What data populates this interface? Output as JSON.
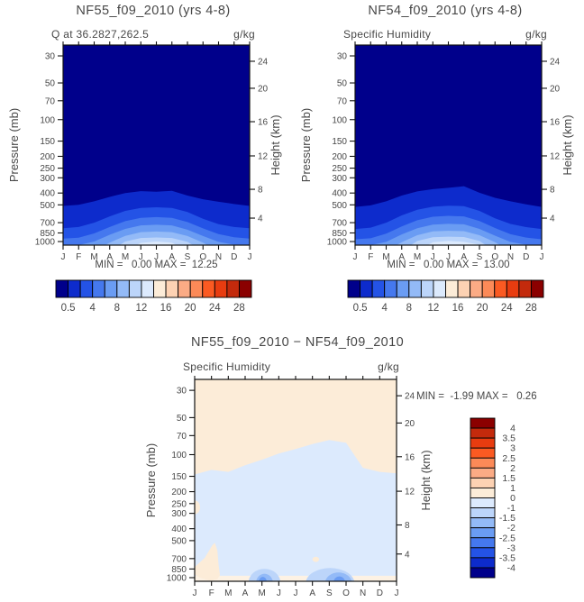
{
  "page": {
    "background": "#ffffff",
    "text_color": "#474747",
    "frame_color": "#111111"
  },
  "palette_low_to_high": [
    "#00008b",
    "#0d2bcc",
    "#2453e6",
    "#4578ee",
    "#6a9cf3",
    "#93baf7",
    "#bcd5fa",
    "#dceafd",
    "#fcecd8",
    "#fdd2b3",
    "#fbab85",
    "#fc8a58",
    "#fb5a22",
    "#e83c10",
    "#c32a0c",
    "#8b0000"
  ],
  "chart_data": [
    {
      "id": "nf55",
      "type": "heatmap",
      "title": "NF55_f09_2010 (yrs 4-8)",
      "subtitle": "Q at 36.2827,262.5",
      "units": "g/kg",
      "stats_line": "MIN =   0.00 MAX =  12.25",
      "x_tick_labels": [
        "J",
        "F",
        "M",
        "A",
        "M",
        "J",
        "J",
        "A",
        "S",
        "O",
        "N",
        "D",
        "J"
      ],
      "pressure_ticks_mb": [
        30,
        50,
        70,
        100,
        150,
        200,
        250,
        300,
        400,
        500,
        700,
        850,
        1000
      ],
      "height_ticks_km": [
        24,
        20,
        16,
        12,
        8,
        4
      ],
      "pressure_axis_label": "Pressure (mb)",
      "height_axis_label": "Height (km)",
      "pressure_range_mb": [
        24.45,
        1070
      ],
      "background_color_index": 0,
      "contour_bands": [
        {
          "level_gkg": 0.5,
          "color_index": 1,
          "top_pressure_by_month_mb": [
            510,
            500,
            468,
            430,
            400,
            386,
            390,
            384,
            420,
            450,
            472,
            492,
            510
          ]
        },
        {
          "level_gkg": 2,
          "color_index": 2,
          "top_pressure_by_month_mb": [
            778,
            760,
            700,
            622,
            560,
            530,
            524,
            530,
            572,
            650,
            720,
            760,
            778
          ]
        },
        {
          "level_gkg": 4,
          "color_index": 3,
          "top_pressure_by_month_mb": [
            945,
            930,
            858,
            760,
            680,
            640,
            630,
            640,
            692,
            780,
            868,
            922,
            945
          ]
        },
        {
          "level_gkg": 6,
          "color_index": 4,
          "top_pressure_by_month_mb": [
            1070,
            1070,
            1000,
            880,
            788,
            738,
            728,
            738,
            800,
            900,
            1005,
            1060,
            1070
          ]
        },
        {
          "level_gkg": 8,
          "color_index": 5,
          "top_pressure_by_month_mb": [
            1200,
            1200,
            1200,
            1020,
            898,
            838,
            828,
            838,
            900,
            1020,
            1200,
            1200,
            1200
          ]
        },
        {
          "level_gkg": 10,
          "color_index": 6,
          "top_pressure_by_month_mb": [
            1200,
            1200,
            1200,
            1200,
            1000,
            935,
            925,
            935,
            1005,
            1200,
            1200,
            1200,
            1200
          ]
        },
        {
          "level_gkg": 12,
          "color_index": 7,
          "top_pressure_by_month_mb": [
            1200,
            1200,
            1200,
            1200,
            1200,
            1025,
            1000,
            1020,
            1200,
            1200,
            1200,
            1200,
            1200
          ]
        }
      ],
      "colorbar_tick_labels": [
        "0.5",
        "4",
        "8",
        "12",
        "16",
        "20",
        "24",
        "28"
      ]
    },
    {
      "id": "nf54",
      "type": "heatmap",
      "title": "NF54_f09_2010 (yrs 4-8)",
      "subtitle": "Specific Humidity",
      "units": "g/kg",
      "stats_line": "MIN =   0.00 MAX =  13.00",
      "x_tick_labels": [
        "J",
        "F",
        "M",
        "A",
        "M",
        "J",
        "J",
        "A",
        "S",
        "O",
        "N",
        "D",
        "J"
      ],
      "pressure_ticks_mb": [
        30,
        50,
        70,
        100,
        150,
        200,
        250,
        300,
        400,
        500,
        700,
        850,
        1000
      ],
      "height_ticks_km": [
        24,
        20,
        16,
        12,
        8,
        4
      ],
      "pressure_axis_label": "Pressure (mb)",
      "height_axis_label": "Height (km)",
      "pressure_range_mb": [
        24.45,
        1070
      ],
      "background_color_index": 0,
      "contour_bands": [
        {
          "level_gkg": 0.5,
          "color_index": 1,
          "top_pressure_by_month_mb": [
            520,
            505,
            468,
            420,
            388,
            372,
            362,
            352,
            398,
            438,
            468,
            495,
            520
          ]
        },
        {
          "level_gkg": 2,
          "color_index": 2,
          "top_pressure_by_month_mb": [
            790,
            770,
            700,
            610,
            548,
            518,
            508,
            512,
            560,
            645,
            718,
            762,
            790
          ]
        },
        {
          "level_gkg": 4,
          "color_index": 3,
          "top_pressure_by_month_mb": [
            958,
            940,
            862,
            752,
            668,
            626,
            616,
            622,
            678,
            775,
            870,
            928,
            958
          ]
        },
        {
          "level_gkg": 6,
          "color_index": 4,
          "top_pressure_by_month_mb": [
            1070,
            1070,
            1005,
            875,
            778,
            726,
            716,
            722,
            788,
            895,
            1008,
            1062,
            1070
          ]
        },
        {
          "level_gkg": 8,
          "color_index": 5,
          "top_pressure_by_month_mb": [
            1200,
            1200,
            1200,
            1012,
            888,
            826,
            816,
            822,
            888,
            1012,
            1200,
            1200,
            1200
          ]
        },
        {
          "level_gkg": 10,
          "color_index": 6,
          "top_pressure_by_month_mb": [
            1200,
            1200,
            1200,
            1200,
            988,
            922,
            912,
            918,
            990,
            1200,
            1200,
            1200,
            1200
          ]
        },
        {
          "level_gkg": 12,
          "color_index": 7,
          "top_pressure_by_month_mb": [
            1200,
            1200,
            1200,
            1200,
            1200,
            1012,
            988,
            1005,
            1062,
            1200,
            1200,
            1200,
            1200
          ]
        }
      ],
      "colorbar_tick_labels": [
        "0.5",
        "4",
        "8",
        "12",
        "16",
        "20",
        "24",
        "28"
      ]
    },
    {
      "id": "difference",
      "type": "heatmap",
      "title": "NF55_f09_2010 − NF54_f09_2010",
      "subtitle": "Specific Humidity",
      "units": "g/kg",
      "stats_line": "MIN =  -1.99 MAX =   0.26",
      "x_tick_labels": [
        "J",
        "F",
        "M",
        "A",
        "M",
        "J",
        "J",
        "A",
        "S",
        "O",
        "N",
        "D",
        "J"
      ],
      "pressure_ticks_mb": [
        30,
        50,
        70,
        100,
        150,
        200,
        250,
        300,
        400,
        500,
        700,
        850,
        1000
      ],
      "height_ticks_km": [
        24,
        20,
        16,
        12,
        8,
        4
      ],
      "pressure_axis_label": "Pressure (mb)",
      "height_axis_label": "Height (km)",
      "pressure_range_mb": [
        24.45,
        1070
      ],
      "background_color_index": 8,
      "negative_region": {
        "band": "-1 to 0",
        "color_index": 7,
        "top_pressure_by_month_mb": [
          145,
          133,
          138,
          122,
          110,
          98,
          90,
          82,
          76,
          80,
          128,
          138,
          142
        ]
      },
      "surface_strip": {
        "color": "#fdf2e4",
        "top_pressure_mb": 965
      },
      "features": [
        {
          "name": "warm-blob-winter-lower-left",
          "color_index": 8,
          "polygon_month_pressure": [
            [
              0,
              820
            ],
            [
              0.6,
              690
            ],
            [
              1.05,
              545
            ],
            [
              1.2,
              520
            ],
            [
              1.35,
              600
            ],
            [
              1.42,
              780
            ],
            [
              1.5,
              950
            ],
            [
              1.35,
              1030
            ],
            [
              0.9,
              1055
            ],
            [
              0.4,
              1010
            ],
            [
              0,
              945
            ]
          ]
        },
        {
          "name": "warm-spot-jan-250mb",
          "color_index": 8,
          "ellipse": {
            "cx_month": 0.02,
            "cy_pressure_mb": 268,
            "rx_month": 0.3,
            "top_pressure_mb": 236
          }
        },
        {
          "name": "warm-dot-aug-700mb",
          "color_index": 8,
          "ellipse": {
            "cx_month": 7.2,
            "cy_pressure_mb": 710,
            "rx_month": 0.2,
            "top_pressure_mb": 676
          }
        },
        {
          "name": "cool-blob-may-outer",
          "color_index": 6,
          "ellipse": {
            "cx_month": 4.15,
            "cy_pressure_mb": 1100,
            "rx_month": 0.95,
            "top_pressure_mb": 848
          }
        },
        {
          "name": "cool-blob-may-core",
          "color_index": 5,
          "ellipse": {
            "cx_month": 4.15,
            "cy_pressure_mb": 1100,
            "rx_month": 0.5,
            "top_pressure_mb": 930
          }
        },
        {
          "name": "cool-blob-may-dot",
          "color_index": 4,
          "ellipse": {
            "cx_month": 4.05,
            "cy_pressure_mb": 1090,
            "rx_month": 0.24,
            "top_pressure_mb": 985
          }
        },
        {
          "name": "cool-blob-sep-outer",
          "color_index": 6,
          "ellipse": {
            "cx_month": 8.05,
            "cy_pressure_mb": 1110,
            "rx_month": 1.45,
            "top_pressure_mb": 835
          }
        },
        {
          "name": "cool-blob-sep-core",
          "color_index": 5,
          "ellipse": {
            "cx_month": 8.55,
            "cy_pressure_mb": 1110,
            "rx_month": 0.8,
            "top_pressure_mb": 908
          }
        },
        {
          "name": "cool-blob-sep-dot",
          "color_index": 4,
          "ellipse": {
            "cx_month": 8.6,
            "cy_pressure_mb": 1095,
            "rx_month": 0.35,
            "top_pressure_mb": 978
          }
        }
      ],
      "colorbar_tick_labels": [
        "4",
        "3.5",
        "3",
        "2.5",
        "2",
        "1.5",
        "1",
        "0",
        "-1",
        "-1.5",
        "-2",
        "-2.5",
        "-3",
        "-3.5",
        "-4"
      ]
    }
  ]
}
